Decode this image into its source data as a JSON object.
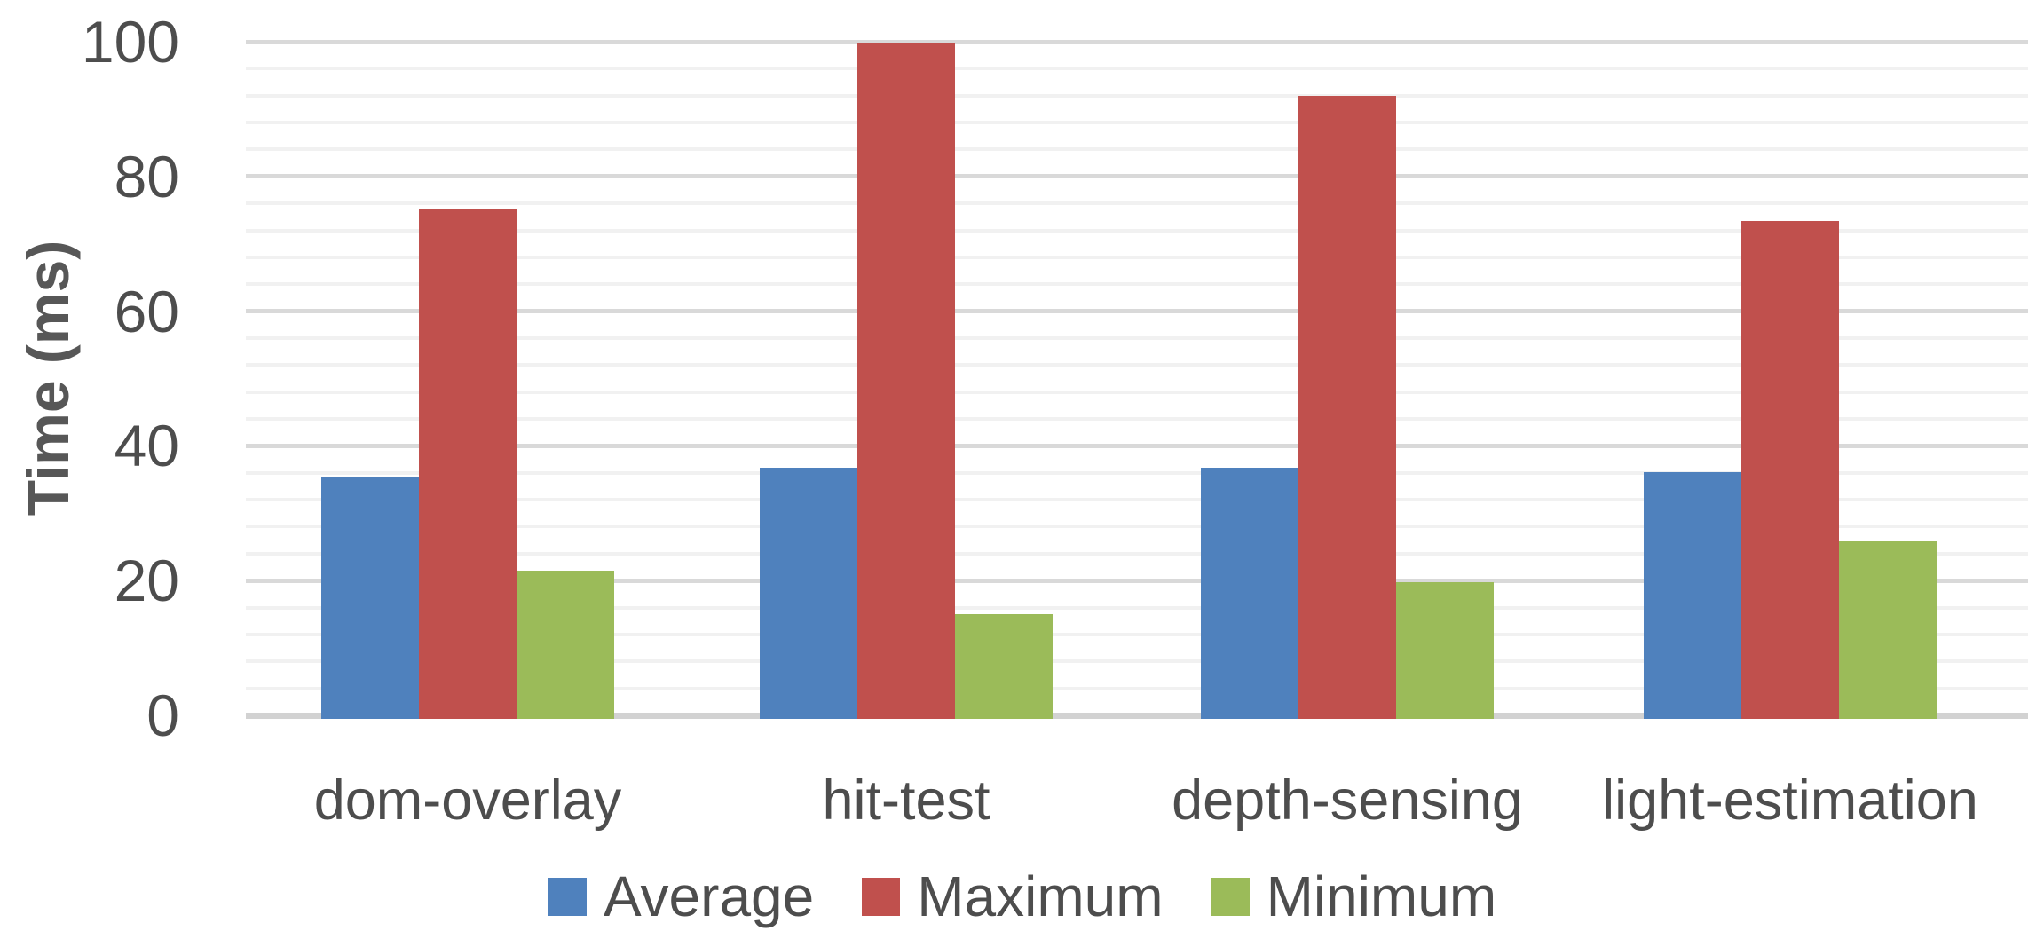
{
  "chart_data": {
    "type": "bar",
    "title": "",
    "ylabel": "Time (ms)",
    "xlabel": "",
    "categories": [
      "dom-overlay",
      "hit-test",
      "depth-sensing",
      "light-estimation"
    ],
    "series": [
      {
        "name": "Average",
        "color": "#4F81BD",
        "values": [
          35.5,
          36.8,
          36.7,
          36.1
        ]
      },
      {
        "name": "Maximum",
        "color": "#C0504D",
        "values": [
          75.2,
          99.8,
          91.9,
          73.4
        ]
      },
      {
        "name": "Minimum",
        "color": "#9BBB59",
        "values": [
          21.5,
          15.0,
          19.8,
          25.8
        ]
      }
    ],
    "ylim": [
      0,
      100
    ],
    "yticks": [
      0,
      20,
      40,
      60,
      80,
      100
    ],
    "major_unit": 20,
    "minor_unit": 4,
    "grid": "horizontal major and minor gridlines",
    "legend_position": "bottom",
    "plot_background": "#ffffff"
  }
}
